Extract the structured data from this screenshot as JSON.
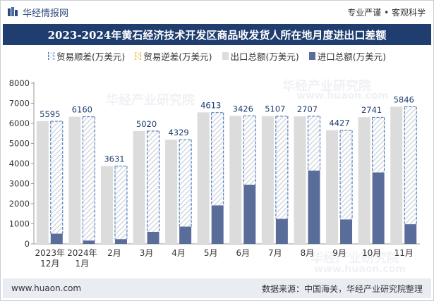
{
  "header": {
    "brand": "华经情报网",
    "tagline": "专业严谨 • 客观科学"
  },
  "title": "2023-2024年黄石经济技术开发区商品收发货人所在地月度进出口差额",
  "watermarks": [
    "华经产业研究院",
    "www.huaon.com"
  ],
  "footer": {
    "website": "www.huaon.com",
    "source": "数据来源：中国海关，华经产业研究院整理"
  },
  "colors": {
    "title_bg": "#1f3d6e",
    "export": "#dcdcdc",
    "import": "#5a6d9a",
    "surplus": "#3a6db0",
    "deficit": "#e3b531"
  },
  "chart_data": {
    "type": "bar",
    "title": "2023-2024年黄石经济技术开发区商品收发货人所在地月度进出口差额",
    "xlabel": "",
    "ylabel": "",
    "ylim": [
      0,
      8000
    ],
    "yticks": [
      0,
      1000,
      2000,
      3000,
      4000,
      5000,
      6000,
      7000,
      8000
    ],
    "grid": false,
    "legend_position": "top",
    "categories": [
      [
        "2023年",
        "12月"
      ],
      [
        "2024年",
        "1月"
      ],
      [
        "2月"
      ],
      [
        "3月"
      ],
      [
        "4月"
      ],
      [
        "5月"
      ],
      [
        "6月"
      ],
      [
        "7月"
      ],
      [
        "8月"
      ],
      [
        "9月"
      ],
      [
        "10月"
      ],
      [
        "11月"
      ]
    ],
    "series": [
      {
        "name": "贸易顺差(万美元)",
        "values": [
          5595,
          6160,
          3631,
          5020,
          4329,
          4613,
          3426,
          5107,
          2707,
          4427,
          2741,
          5846
        ]
      },
      {
        "name": "贸易逆差(万美元)",
        "values": [
          0,
          0,
          0,
          0,
          0,
          0,
          0,
          0,
          0,
          0,
          0,
          0
        ]
      },
      {
        "name": "出口总额(万美元)",
        "values": [
          6110,
          6330,
          3870,
          5620,
          5190,
          6550,
          6370,
          6360,
          6350,
          5660,
          6310,
          6830
        ]
      },
      {
        "name": "进口总额(万美元)",
        "values": [
          510,
          170,
          240,
          600,
          860,
          1920,
          2950,
          1250,
          3650,
          1220,
          3560,
          980
        ]
      }
    ],
    "data_labels": [
      "5595",
      "6160",
      "3631",
      "5020",
      "4329",
      "4613",
      "3426",
      "5107",
      "2707",
      "4427",
      "2741",
      "5846"
    ]
  }
}
